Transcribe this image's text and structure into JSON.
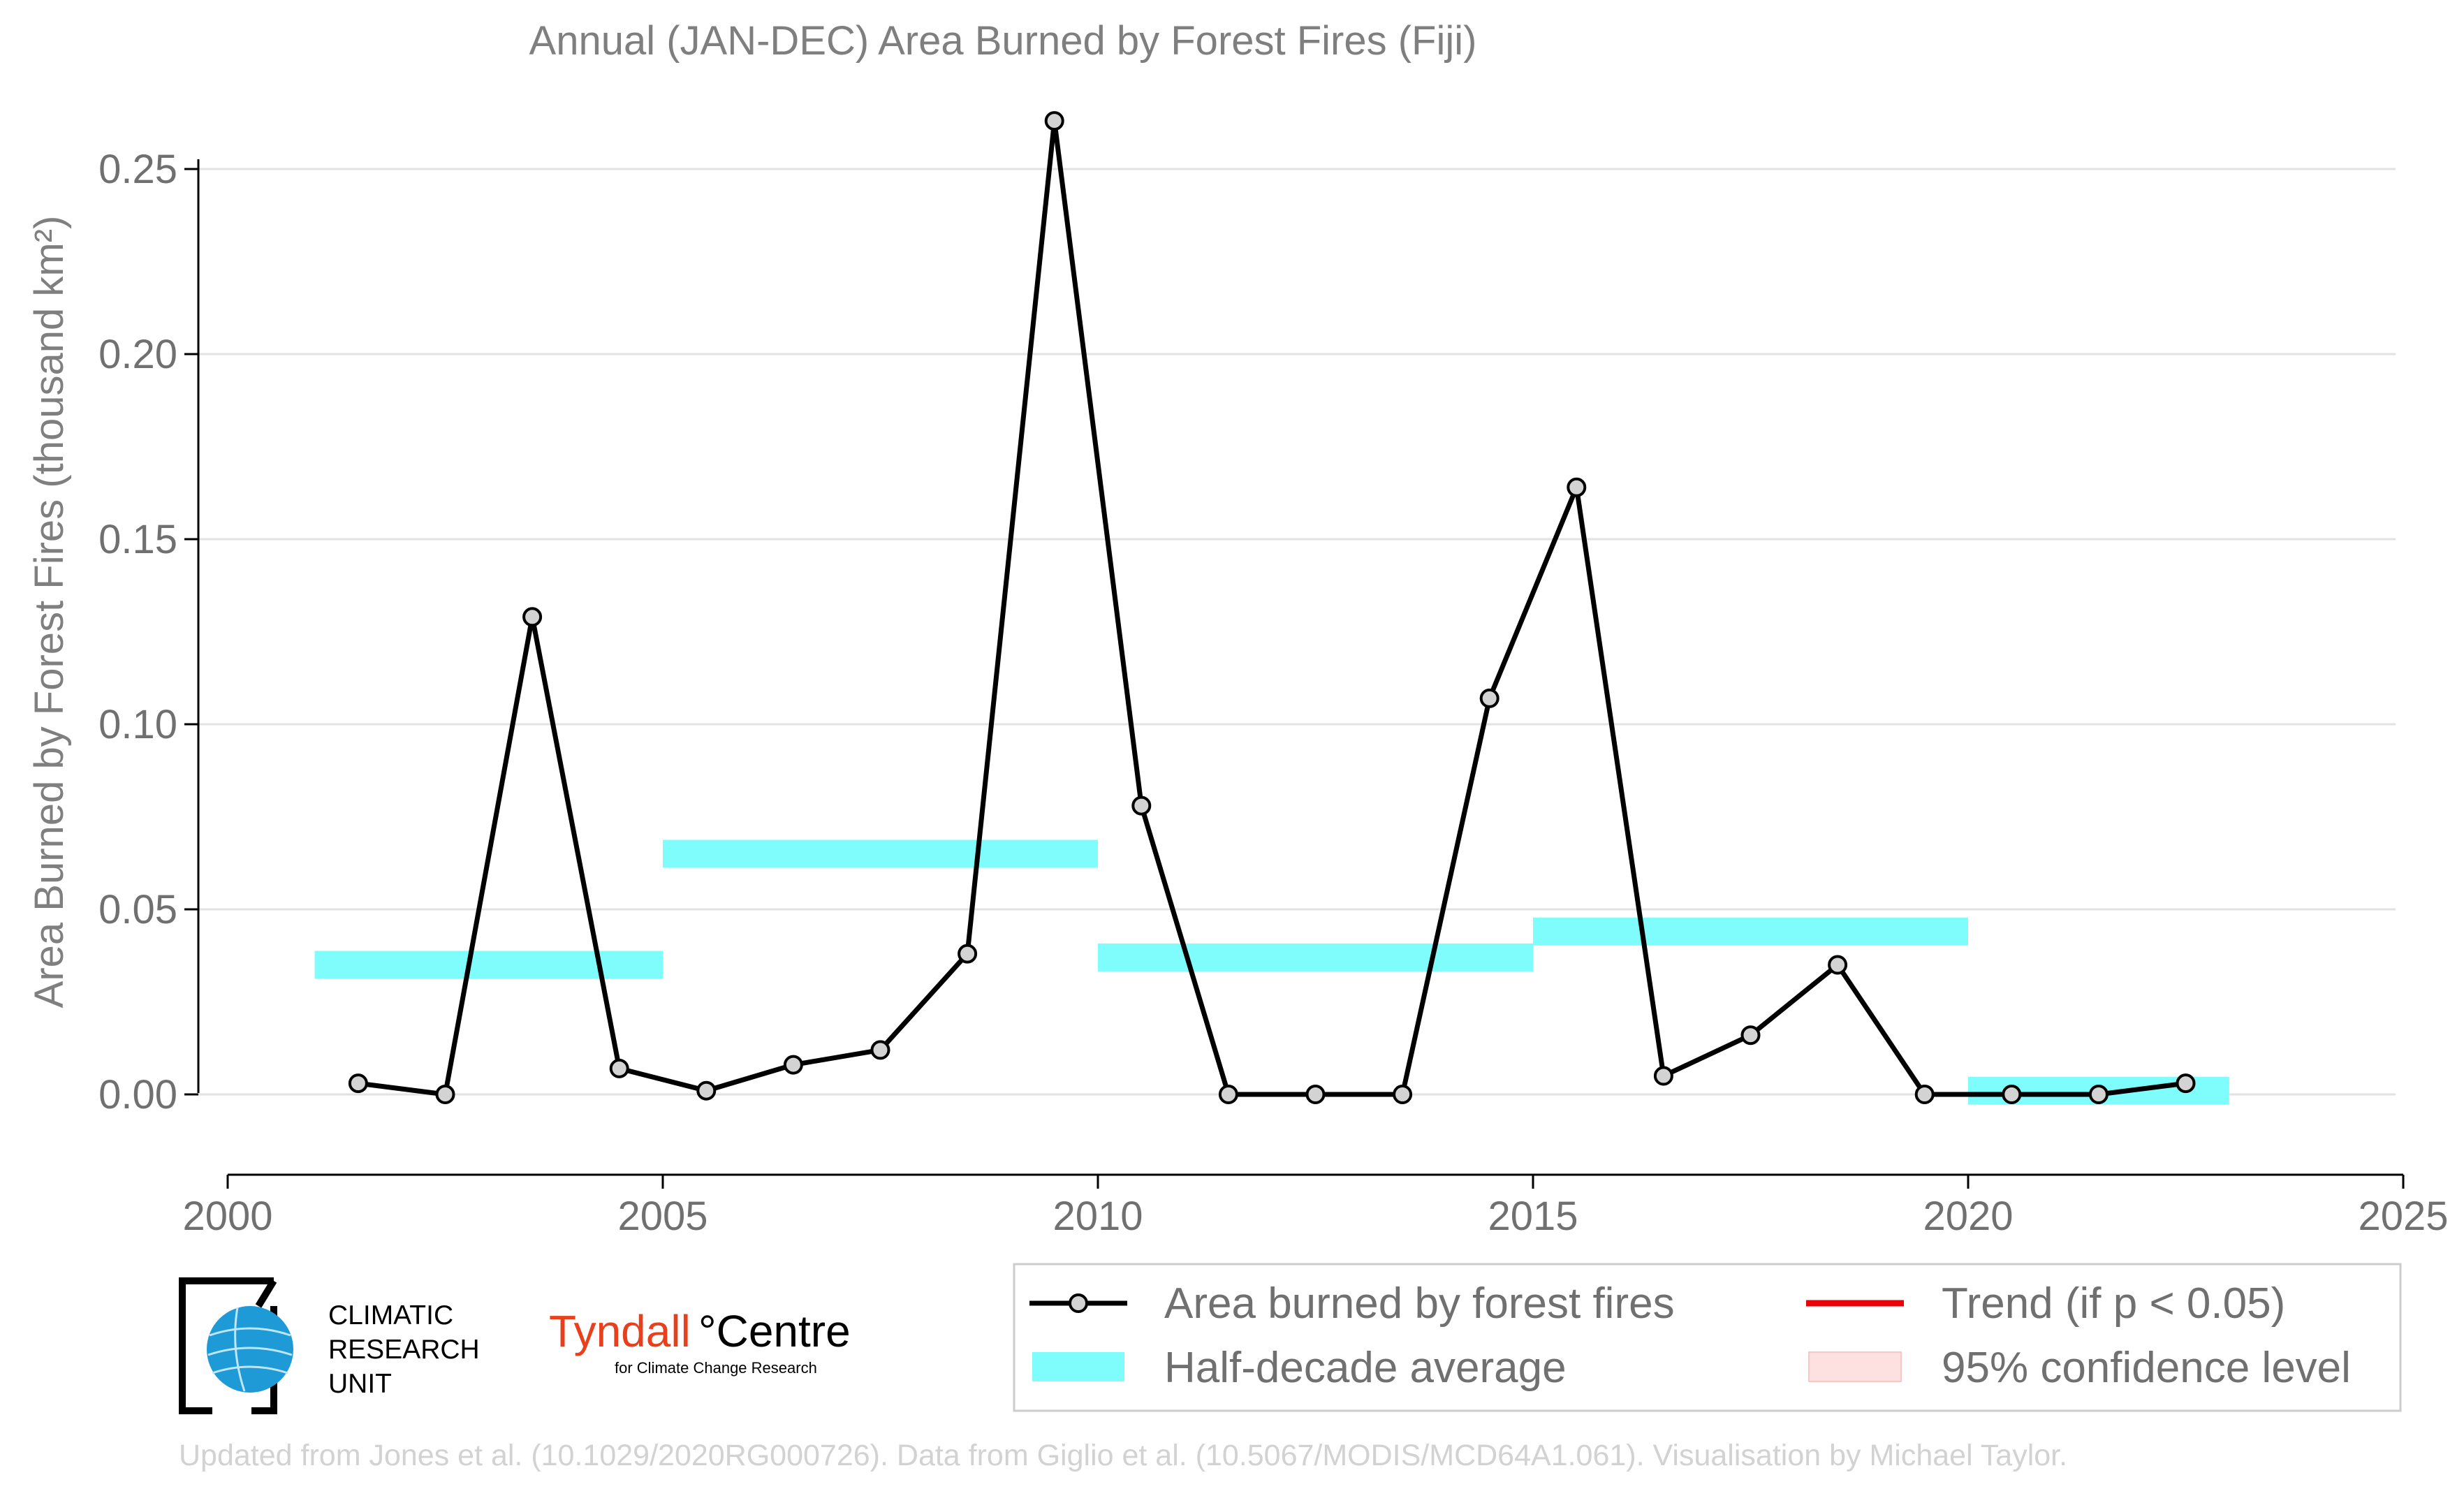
{
  "chart_data": {
    "type": "line",
    "title": "Annual (JAN-DEC) Area Burned by Forest Fires (Fiji)",
    "xlabel": "",
    "ylabel": "Area Burned by Forest Fires (thousand km²)",
    "xlim": [
      2000,
      2025
    ],
    "ylim": [
      -0.015,
      0.272
    ],
    "x_ticks": [
      2000,
      2005,
      2010,
      2015,
      2020,
      2025
    ],
    "y_ticks": [
      "0.00",
      "0.05",
      "0.10",
      "0.15",
      "0.20",
      "0.25"
    ],
    "grid": "horizontal",
    "legend_position": "bottom-right",
    "series": [
      {
        "name": "Area burned by forest fires",
        "color": "#000000",
        "x": [
          2001.5,
          2002.5,
          2003.5,
          2004.5,
          2005.5,
          2006.5,
          2007.5,
          2008.5,
          2009.5,
          2010.5,
          2011.5,
          2012.5,
          2013.5,
          2014.5,
          2015.5,
          2016.5,
          2017.5,
          2018.5,
          2019.5,
          2020.5,
          2021.5,
          2022.5
        ],
        "values": [
          0.003,
          0.0,
          0.129,
          0.007,
          0.001,
          0.008,
          0.012,
          0.038,
          0.263,
          0.078,
          0.0,
          0.0,
          0.0,
          0.107,
          0.164,
          0.005,
          0.016,
          0.035,
          0.0,
          0.0,
          0.0,
          0.003
        ]
      },
      {
        "name": "Half-decade average",
        "type": "step",
        "color": "#7ffcfc",
        "segments": [
          {
            "x_start": 2001,
            "x_end": 2005,
            "value": 0.035
          },
          {
            "x_start": 2005,
            "x_end": 2010,
            "value": 0.065
          },
          {
            "x_start": 2010,
            "x_end": 2015,
            "value": 0.037
          },
          {
            "x_start": 2015,
            "x_end": 2020,
            "value": 0.044
          },
          {
            "x_start": 2020,
            "x_end": 2023,
            "value": 0.001
          }
        ]
      }
    ],
    "legend": [
      {
        "label": "Area burned by forest fires",
        "symbol": "line-marker",
        "color": "#000000"
      },
      {
        "label": "Trend (if p < 0.05)",
        "symbol": "line",
        "color": "#e8000b"
      },
      {
        "label": "Half-decade average",
        "symbol": "band",
        "color": "#7ffcfc"
      },
      {
        "label": "95% confidence level",
        "symbol": "band",
        "color": "#fde0e0"
      }
    ]
  },
  "logos": {
    "cru": {
      "line1": "CLIMATIC",
      "line2": "RESEARCH",
      "line3": "UNIT"
    },
    "tyndall": {
      "name": "Tyndall",
      "suffix": "°Centre",
      "tagline": "for Climate Change Research",
      "color": "#e8401c"
    }
  },
  "footer": "Updated from Jones et al. (10.1029/2020RG000726). Data from Giglio et al. (10.5067/MODIS/MCD64A1.061). Visualisation by Michael Taylor."
}
